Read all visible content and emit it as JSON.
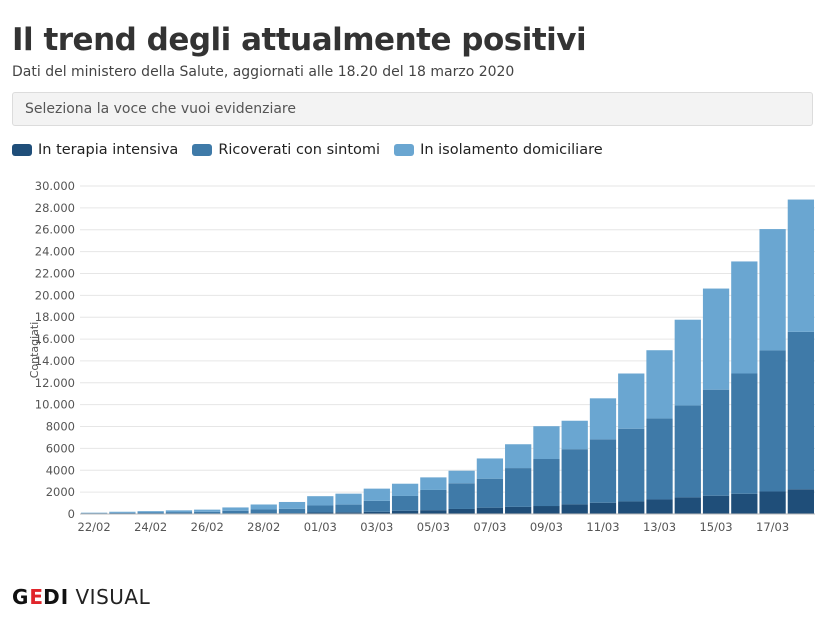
{
  "header": {
    "title": "Il trend degli attualmente positivi",
    "subtitle": "Dati del ministero della Salute, aggiornati alle 18.20 del 18 marzo 2020"
  },
  "selector": {
    "placeholder": "Seleziona la voce che vuoi evidenziare"
  },
  "logo": {
    "part1": "G",
    "part2": "E",
    "part3": "DI",
    "part4": "VISUAL"
  },
  "colors": {
    "intensiva": "#1f4e79",
    "ricoverati": "#3f7aa8",
    "isolamento": "#6aa6d1"
  },
  "chart_data": {
    "type": "bar",
    "stacked": true,
    "title": "Il trend degli attualmente positivi",
    "ylabel": "Contagiati",
    "ylim": [
      0,
      30000
    ],
    "yticks": [
      0,
      2000,
      4000,
      6000,
      8000,
      10000,
      12000,
      14000,
      16000,
      18000,
      20000,
      22000,
      24000,
      26000,
      28000,
      30000
    ],
    "ytick_labels": [
      "0",
      "2000",
      "4000",
      "6000",
      "8000",
      "10.000",
      "12.000",
      "14.000",
      "16.000",
      "18.000",
      "20.000",
      "22.000",
      "24.000",
      "26.000",
      "28.000",
      "30.000"
    ],
    "categories": [
      "22/02",
      "23/02",
      "24/02",
      "25/02",
      "26/02",
      "27/02",
      "28/02",
      "29/02",
      "01/03",
      "02/03",
      "03/03",
      "04/03",
      "05/03",
      "06/03",
      "07/03",
      "08/03",
      "09/03",
      "10/03",
      "11/03",
      "12/03",
      "13/03",
      "14/03",
      "15/03",
      "16/03",
      "17/03",
      "18/03"
    ],
    "xtick_labels": [
      "22/02",
      "24/02",
      "26/02",
      "28/02",
      "01/03",
      "03/03",
      "05/03",
      "07/03",
      "09/03",
      "11/03",
      "13/03",
      "15/03",
      "17/03"
    ],
    "legend_position": "top-left",
    "grid": true,
    "series": [
      {
        "name": "In terapia intensiva",
        "values": [
          20,
          25,
          30,
          35,
          40,
          50,
          60,
          80,
          140,
          160,
          200,
          300,
          350,
          460,
          580,
          650,
          730,
          880,
          1030,
          1150,
          1330,
          1520,
          1670,
          1850,
          2060,
          2260
        ]
      },
      {
        "name": "Ricoverati con sintomi",
        "values": [
          60,
          90,
          110,
          140,
          160,
          250,
          350,
          400,
          640,
          700,
          1000,
          1350,
          1850,
          2350,
          2650,
          3550,
          4300,
          5050,
          5800,
          6650,
          7400,
          8400,
          9700,
          11000,
          12900,
          14400
        ]
      },
      {
        "name": "In isolamento domiciliare",
        "values": [
          40,
          90,
          120,
          160,
          200,
          300,
          460,
          620,
          850,
          1000,
          1120,
          1120,
          1150,
          1150,
          1850,
          2180,
          3000,
          2600,
          3750,
          5050,
          6250,
          7850,
          9250,
          10250,
          11100,
          12100
        ]
      }
    ]
  }
}
